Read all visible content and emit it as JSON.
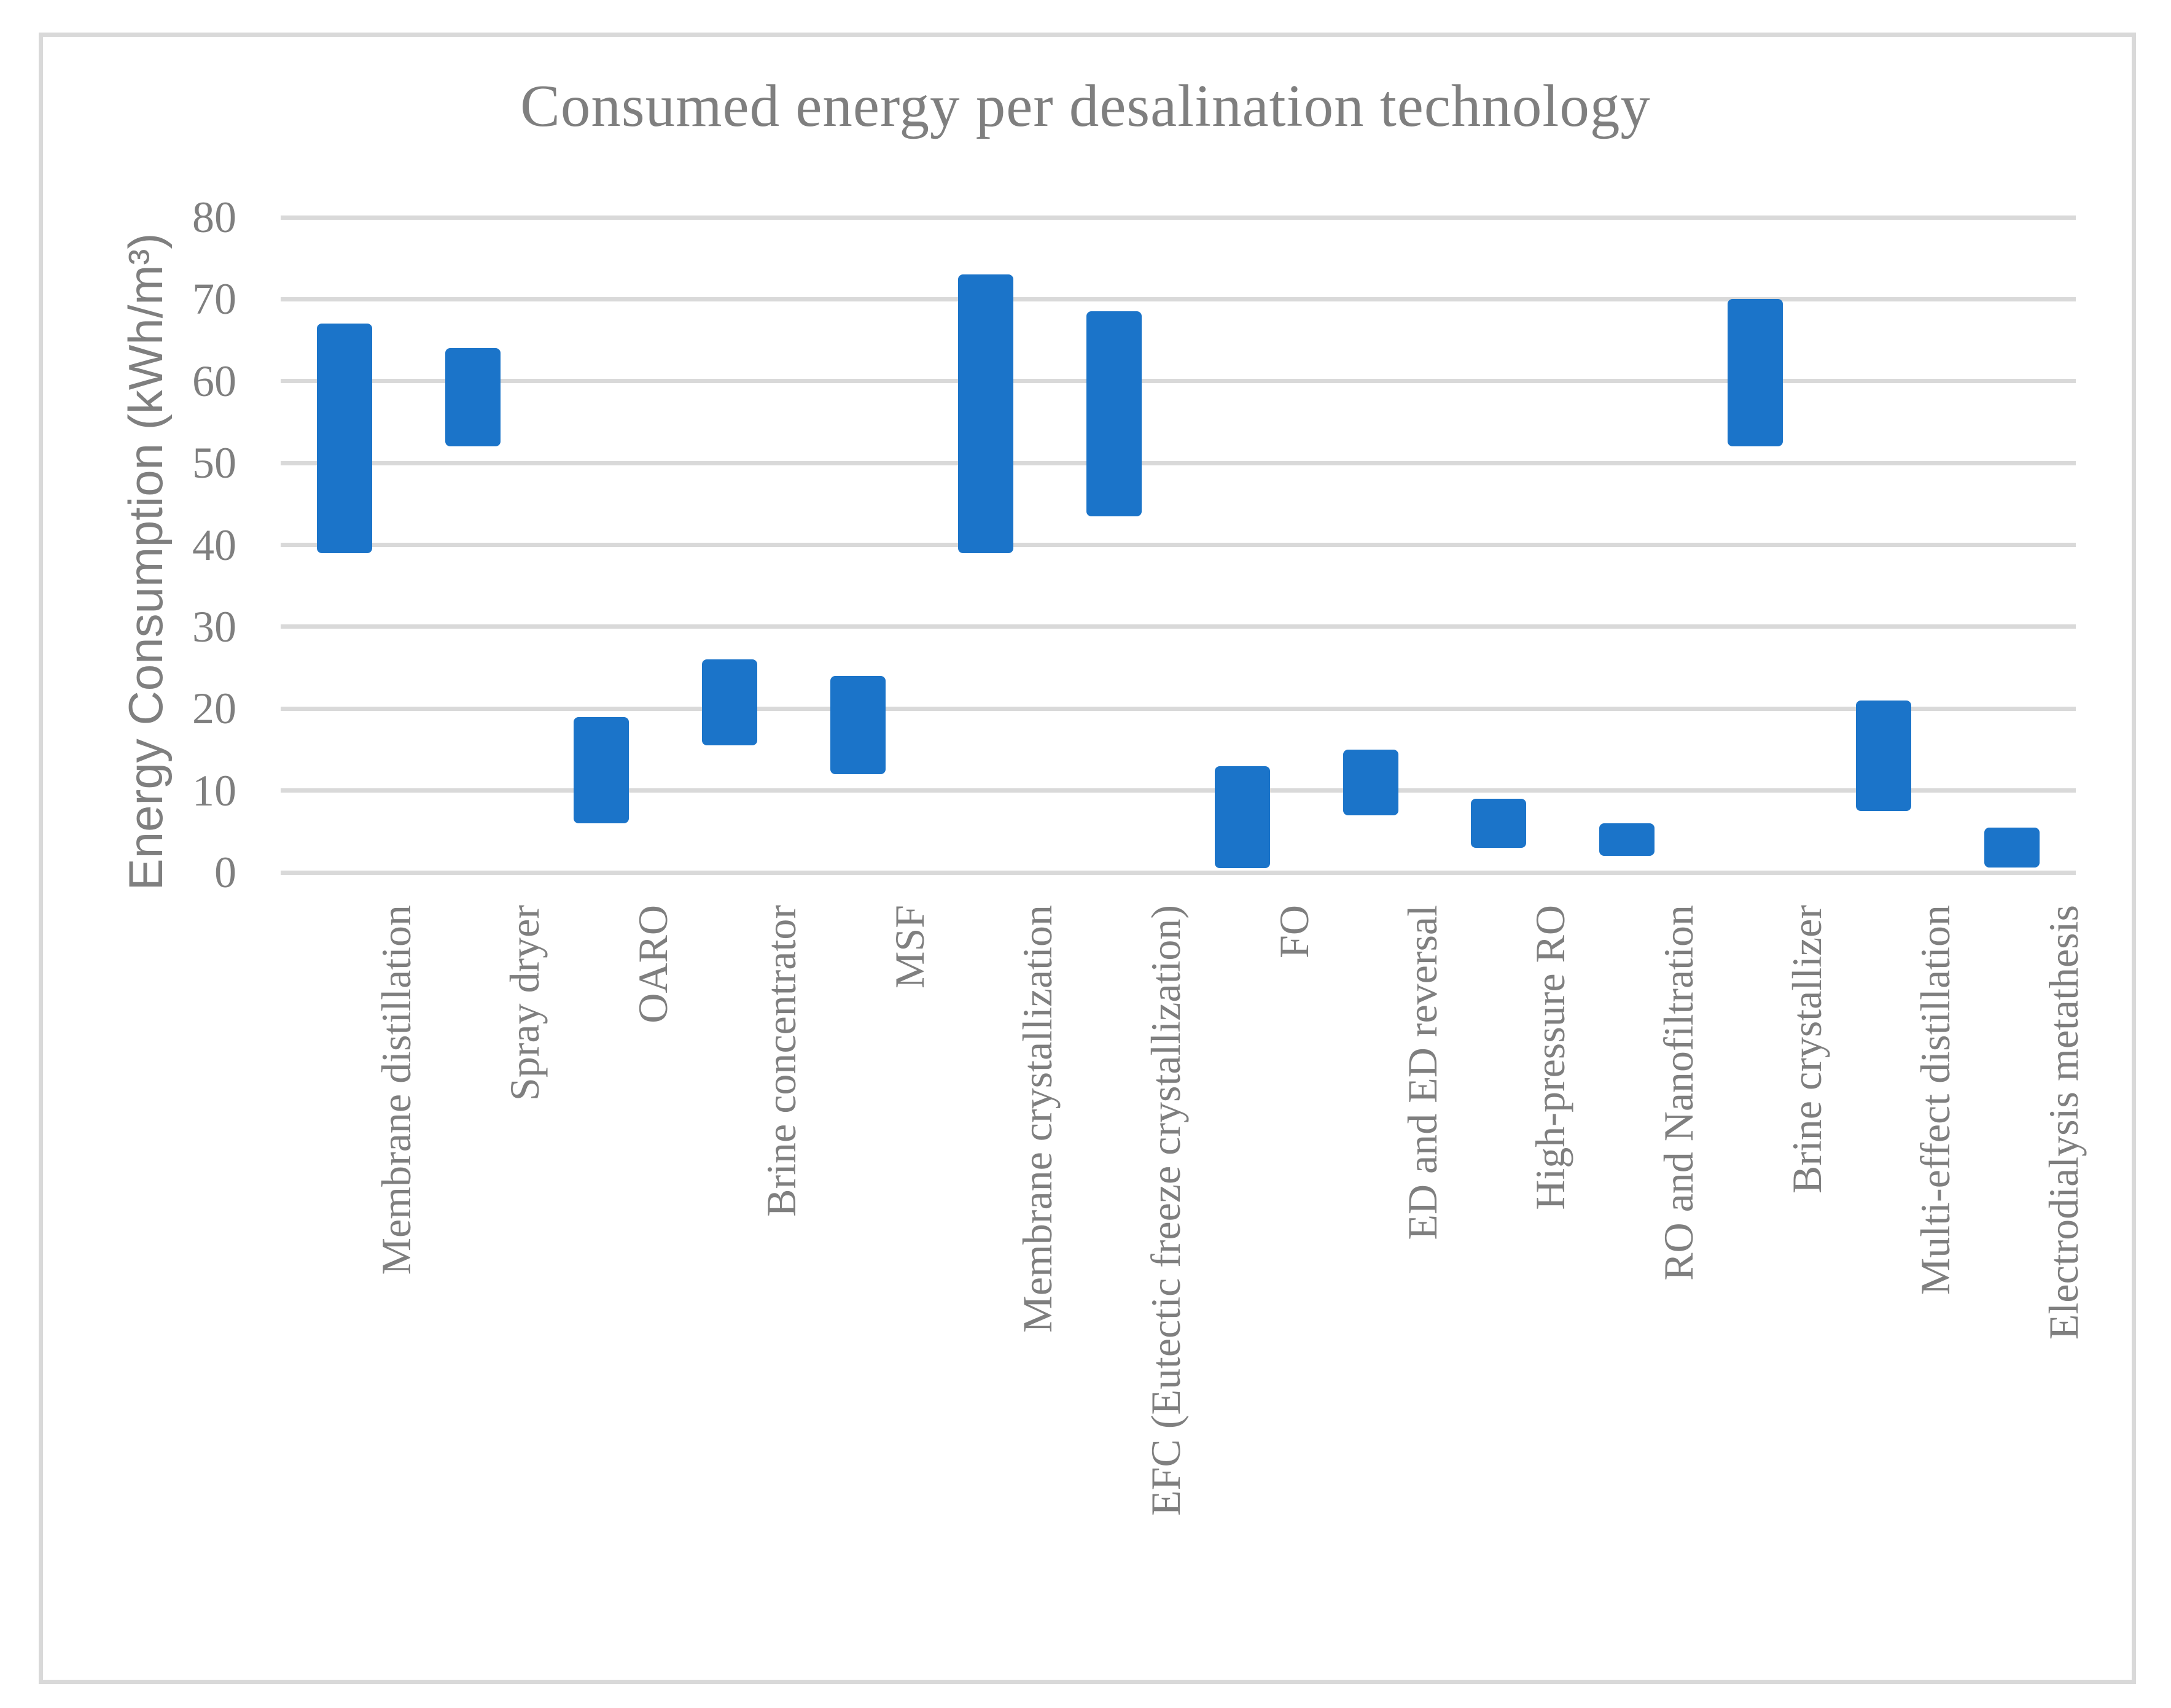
{
  "title": "Consumed energy per desalination technology",
  "y_axis": {
    "label": "Energy Consumption (kWh/m³)",
    "ticks": [
      80,
      70,
      60,
      50,
      40,
      30,
      20,
      10,
      0
    ],
    "min": 0,
    "max": 80
  },
  "chart_data": {
    "type": "bar",
    "subtype": "floating-column-range",
    "title": "Consumed energy per desalination technology",
    "xlabel": "",
    "ylabel": "Energy Consumption (kWh/m³)",
    "ylim": [
      0,
      80
    ],
    "grid": true,
    "legend": "none",
    "categories": [
      "Membrane distillation",
      "Spray dryer",
      "OARO",
      "Brine concentrator",
      "MSF",
      "Membrane crystallization",
      "EFC (Eutectic freeze crystallization)",
      "FO",
      "ED and ED reversal",
      "High-pressure RO",
      "RO and Nanofiltration",
      "Brine crystallizer",
      "Multi-effect distillation",
      "Electrodialysis metathesis"
    ],
    "series": [
      {
        "name": "Energy consumption range",
        "unit": "kWh/m³",
        "ranges_low_high": [
          [
            39,
            67
          ],
          [
            52,
            64
          ],
          [
            6,
            19
          ],
          [
            15.5,
            26
          ],
          [
            12,
            24
          ],
          [
            39,
            73
          ],
          [
            43.5,
            68.5
          ],
          [
            0.5,
            13
          ],
          [
            7,
            15
          ],
          [
            3,
            9
          ],
          [
            2,
            6
          ],
          [
            52,
            70
          ],
          [
            7.5,
            21
          ],
          [
            0.6,
            5.5
          ]
        ]
      }
    ]
  },
  "colors": {
    "bar": "#1B74C9",
    "gridline": "#D9D9D9",
    "frame_border": "#D9D9D9",
    "text": "#7F7F7F",
    "background": "#FFFFFF"
  }
}
